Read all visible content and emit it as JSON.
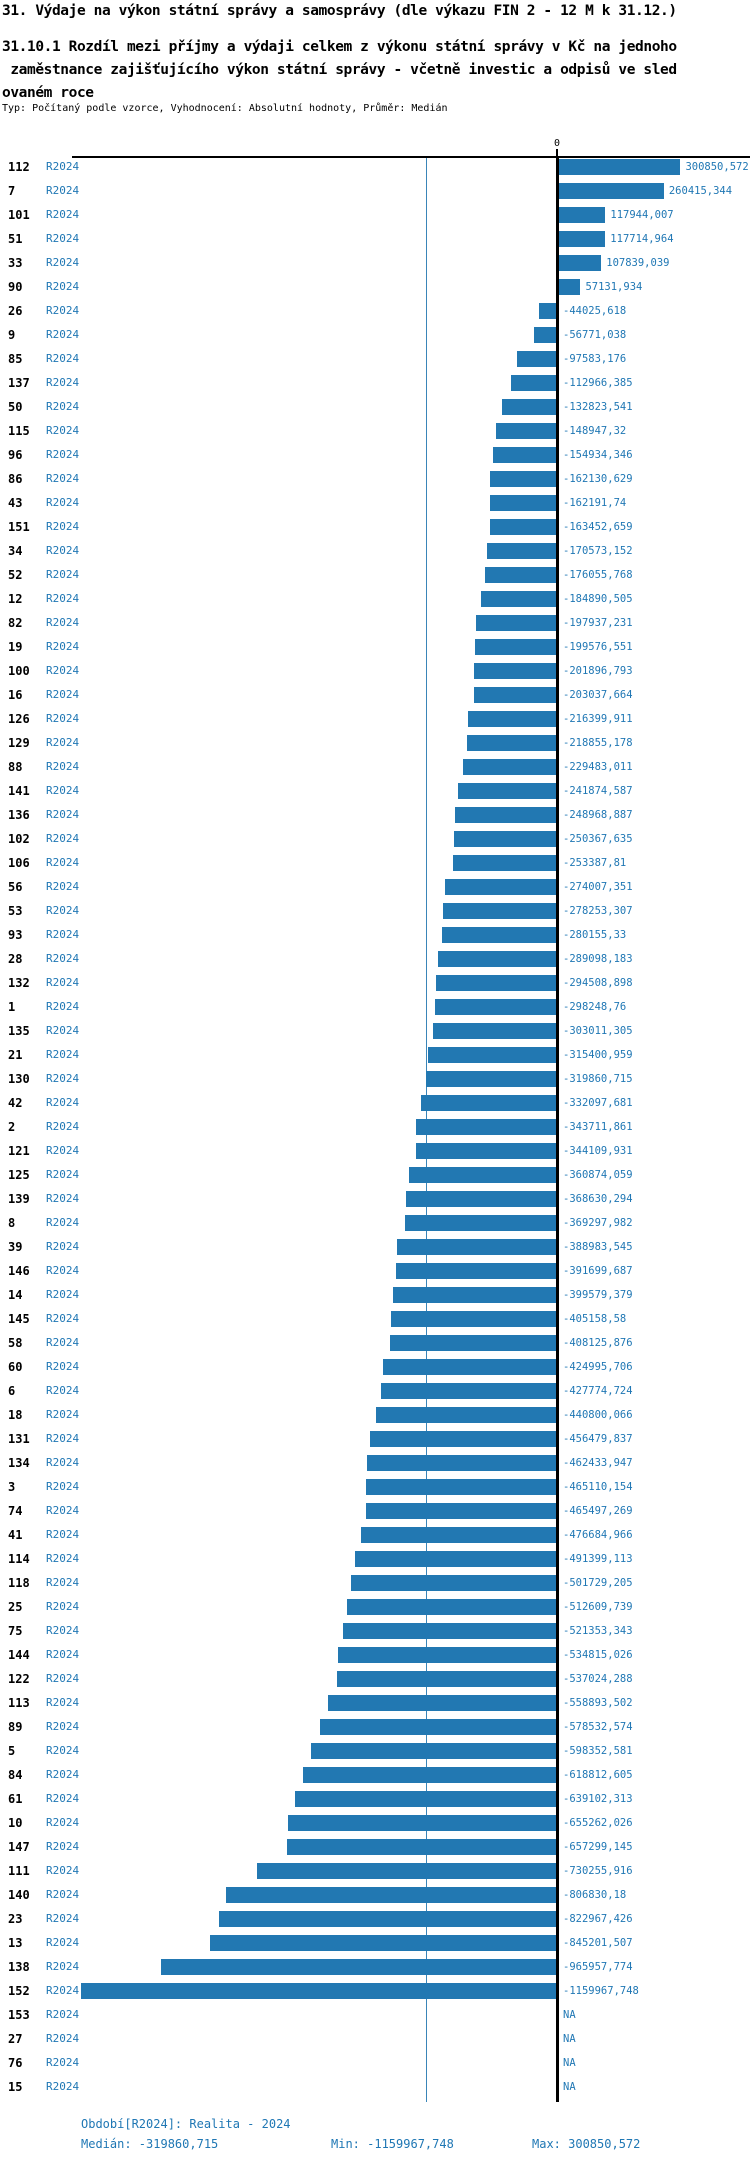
{
  "chart_data": {
    "type": "bar",
    "orientation": "horizontal",
    "title": "31. Výdaje na výkon státní správy a samosprávy (dle výkazu FIN 2 - 12 M k 31.12.)",
    "subtitle_lines": [
      "31.10.1 Rozdíl mezi příjmy a výdaji celkem z výkonu státní správy v Kč na jednoho",
      " zaměstnance zajišťujícího výkon státní správy - včetně investic a odpisů ve sled",
      "ovaném roce"
    ],
    "meta_line": "Typ: Počítaný podle vzorce, Vyhodnocení: Absolutní hodnoty, Průměr: Medián",
    "period_label": "R2024",
    "axis": {
      "zero_label": "0"
    },
    "bar_color": "#2278b2",
    "median_value": -319860.715,
    "xlim": [
      -1159967.748,
      300850.572
    ],
    "na_text": "NA",
    "rows": [
      {
        "id": "112",
        "value": 300850.572,
        "label": "300850,572"
      },
      {
        "id": "7",
        "value": 260415.344,
        "label": "260415,344"
      },
      {
        "id": "101",
        "value": 117944.007,
        "label": "117944,007"
      },
      {
        "id": "51",
        "value": 117714.964,
        "label": "117714,964"
      },
      {
        "id": "33",
        "value": 107839.039,
        "label": "107839,039"
      },
      {
        "id": "90",
        "value": 57131.934,
        "label": "57131,934"
      },
      {
        "id": "26",
        "value": -44025.618,
        "label": "-44025,618"
      },
      {
        "id": "9",
        "value": -56771.038,
        "label": "-56771,038"
      },
      {
        "id": "85",
        "value": -97583.176,
        "label": "-97583,176"
      },
      {
        "id": "137",
        "value": -112966.385,
        "label": "-112966,385"
      },
      {
        "id": "50",
        "value": -132823.541,
        "label": "-132823,541"
      },
      {
        "id": "115",
        "value": -148947.32,
        "label": "-148947,32"
      },
      {
        "id": "96",
        "value": -154934.346,
        "label": "-154934,346"
      },
      {
        "id": "86",
        "value": -162130.629,
        "label": "-162130,629"
      },
      {
        "id": "43",
        "value": -162191.74,
        "label": "-162191,74"
      },
      {
        "id": "151",
        "value": -163452.659,
        "label": "-163452,659"
      },
      {
        "id": "34",
        "value": -170573.152,
        "label": "-170573,152"
      },
      {
        "id": "52",
        "value": -176055.768,
        "label": "-176055,768"
      },
      {
        "id": "12",
        "value": -184890.505,
        "label": "-184890,505"
      },
      {
        "id": "82",
        "value": -197937.231,
        "label": "-197937,231"
      },
      {
        "id": "19",
        "value": -199576.551,
        "label": "-199576,551"
      },
      {
        "id": "100",
        "value": -201896.793,
        "label": "-201896,793"
      },
      {
        "id": "16",
        "value": -203037.664,
        "label": "-203037,664"
      },
      {
        "id": "126",
        "value": -216399.911,
        "label": "-216399,911"
      },
      {
        "id": "129",
        "value": -218855.178,
        "label": "-218855,178"
      },
      {
        "id": "88",
        "value": -229483.011,
        "label": "-229483,011"
      },
      {
        "id": "141",
        "value": -241874.587,
        "label": "-241874,587"
      },
      {
        "id": "136",
        "value": -248968.887,
        "label": "-248968,887"
      },
      {
        "id": "102",
        "value": -250367.635,
        "label": "-250367,635"
      },
      {
        "id": "106",
        "value": -253387.81,
        "label": "-253387,81"
      },
      {
        "id": "56",
        "value": -274007.351,
        "label": "-274007,351"
      },
      {
        "id": "53",
        "value": -278253.307,
        "label": "-278253,307"
      },
      {
        "id": "93",
        "value": -280155.33,
        "label": "-280155,33"
      },
      {
        "id": "28",
        "value": -289098.183,
        "label": "-289098,183"
      },
      {
        "id": "132",
        "value": -294508.898,
        "label": "-294508,898"
      },
      {
        "id": "1",
        "value": -298248.76,
        "label": "-298248,76"
      },
      {
        "id": "135",
        "value": -303011.305,
        "label": "-303011,305"
      },
      {
        "id": "21",
        "value": -315400.959,
        "label": "-315400,959"
      },
      {
        "id": "130",
        "value": -319860.715,
        "label": "-319860,715"
      },
      {
        "id": "42",
        "value": -332097.681,
        "label": "-332097,681"
      },
      {
        "id": "2",
        "value": -343711.861,
        "label": "-343711,861"
      },
      {
        "id": "121",
        "value": -344109.931,
        "label": "-344109,931"
      },
      {
        "id": "125",
        "value": -360874.059,
        "label": "-360874,059"
      },
      {
        "id": "139",
        "value": -368630.294,
        "label": "-368630,294"
      },
      {
        "id": "8",
        "value": -369297.982,
        "label": "-369297,982"
      },
      {
        "id": "39",
        "value": -388983.545,
        "label": "-388983,545"
      },
      {
        "id": "146",
        "value": -391699.687,
        "label": "-391699,687"
      },
      {
        "id": "14",
        "value": -399579.379,
        "label": "-399579,379"
      },
      {
        "id": "145",
        "value": -405158.58,
        "label": "-405158,58"
      },
      {
        "id": "58",
        "value": -408125.876,
        "label": "-408125,876"
      },
      {
        "id": "60",
        "value": -424995.706,
        "label": "-424995,706"
      },
      {
        "id": "6",
        "value": -427774.724,
        "label": "-427774,724"
      },
      {
        "id": "18",
        "value": -440800.066,
        "label": "-440800,066"
      },
      {
        "id": "131",
        "value": -456479.837,
        "label": "-456479,837"
      },
      {
        "id": "134",
        "value": -462433.947,
        "label": "-462433,947"
      },
      {
        "id": "3",
        "value": -465110.154,
        "label": "-465110,154"
      },
      {
        "id": "74",
        "value": -465497.269,
        "label": "-465497,269"
      },
      {
        "id": "41",
        "value": -476684.966,
        "label": "-476684,966"
      },
      {
        "id": "114",
        "value": -491399.113,
        "label": "-491399,113"
      },
      {
        "id": "118",
        "value": -501729.205,
        "label": "-501729,205"
      },
      {
        "id": "25",
        "value": -512609.739,
        "label": "-512609,739"
      },
      {
        "id": "75",
        "value": -521353.343,
        "label": "-521353,343"
      },
      {
        "id": "144",
        "value": -534815.026,
        "label": "-534815,026"
      },
      {
        "id": "122",
        "value": -537024.288,
        "label": "-537024,288"
      },
      {
        "id": "113",
        "value": -558893.502,
        "label": "-558893,502"
      },
      {
        "id": "89",
        "value": -578532.574,
        "label": "-578532,574"
      },
      {
        "id": "5",
        "value": -598352.581,
        "label": "-598352,581"
      },
      {
        "id": "84",
        "value": -618812.605,
        "label": "-618812,605"
      },
      {
        "id": "61",
        "value": -639102.313,
        "label": "-639102,313"
      },
      {
        "id": "10",
        "value": -655262.026,
        "label": "-655262,026"
      },
      {
        "id": "147",
        "value": -657299.145,
        "label": "-657299,145"
      },
      {
        "id": "111",
        "value": -730255.916,
        "label": "-730255,916"
      },
      {
        "id": "140",
        "value": -806830.18,
        "label": "-806830,18"
      },
      {
        "id": "23",
        "value": -822967.426,
        "label": "-822967,426"
      },
      {
        "id": "13",
        "value": -845201.507,
        "label": "-845201,507"
      },
      {
        "id": "138",
        "value": -965957.774,
        "label": "-965957,774"
      },
      {
        "id": "152",
        "value": -1159967.748,
        "label": "-1159967,748"
      },
      {
        "id": "153",
        "value": null,
        "label": "NA"
      },
      {
        "id": "27",
        "value": null,
        "label": "NA"
      },
      {
        "id": "76",
        "value": null,
        "label": "NA"
      },
      {
        "id": "15",
        "value": null,
        "label": "NA"
      }
    ]
  },
  "footer": {
    "period_line": "Období[R2024]: Realita - 2024",
    "median": "Medián: -319860,715",
    "min": "Min: -1159967,748",
    "max": "Max: 300850,572"
  }
}
